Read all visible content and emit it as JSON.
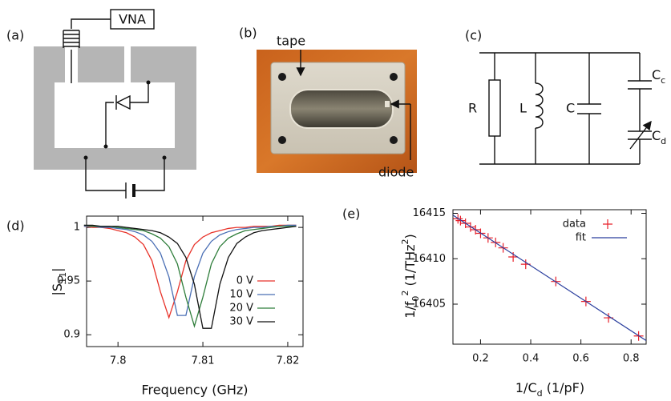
{
  "panels": {
    "a": {
      "label": "(a)",
      "vna": "VNA"
    },
    "b": {
      "label": "(b)",
      "tape": "tape",
      "diode": "diode"
    },
    "c": {
      "label": "(c)",
      "R": "R",
      "L": "L",
      "C": "C",
      "Cc": {
        "text": "C",
        "sub": "c"
      },
      "Cd": {
        "text": "C",
        "sub": "d"
      }
    }
  },
  "chart_data": [
    {
      "type": "line",
      "panel_label": "(d)",
      "x_label": "Frequency (GHz)",
      "y_label": [
        {
          "text": "|S"
        },
        {
          "text": "11",
          "shift": "sub"
        },
        {
          "text": "|"
        }
      ],
      "x": [
        7.796,
        7.797,
        7.798,
        7.799,
        7.8,
        7.801,
        7.802,
        7.803,
        7.804,
        7.805,
        7.806,
        7.807,
        7.808,
        7.809,
        7.81,
        7.811,
        7.812,
        7.813,
        7.814,
        7.815,
        7.816,
        7.817,
        7.818,
        7.819,
        7.82,
        7.821
      ],
      "series": [
        {
          "name": "0 V",
          "color": "#e8332a",
          "values": [
            1.001,
            1.0,
            1.0,
            0.999,
            0.997,
            0.995,
            0.991,
            0.984,
            0.969,
            0.94,
            0.916,
            0.94,
            0.969,
            0.984,
            0.991,
            0.995,
            0.997,
            0.999,
            1.0,
            1.0,
            1.001,
            1.001,
            1.001,
            1.002,
            1.002,
            1.002
          ]
        },
        {
          "name": "10 V",
          "color": "#4a6fb5",
          "values": [
            1.001,
            1.001,
            1.0,
            1.0,
            0.999,
            0.998,
            0.996,
            0.993,
            0.987,
            0.976,
            0.954,
            0.918,
            0.918,
            0.954,
            0.976,
            0.987,
            0.993,
            0.996,
            0.998,
            0.999,
            1.0,
            1.0,
            1.001,
            1.001,
            1.002,
            1.002
          ]
        },
        {
          "name": "20 V",
          "color": "#2e7d3a",
          "values": [
            1.002,
            1.001,
            1.001,
            1.001,
            1.0,
            0.999,
            0.998,
            0.997,
            0.994,
            0.99,
            0.982,
            0.966,
            0.935,
            0.908,
            0.935,
            0.966,
            0.982,
            0.99,
            0.994,
            0.997,
            0.998,
            0.999,
            1.0,
            1.001,
            1.001,
            1.001
          ]
        },
        {
          "name": "30 V",
          "color": "#111111",
          "values": [
            1.002,
            1.002,
            1.001,
            1.001,
            1.001,
            1.0,
            0.999,
            0.998,
            0.997,
            0.995,
            0.991,
            0.985,
            0.972,
            0.947,
            0.906,
            0.906,
            0.947,
            0.972,
            0.985,
            0.991,
            0.995,
            0.997,
            0.998,
            0.999,
            1.0,
            1.001
          ]
        }
      ],
      "xlim": [
        7.7963,
        7.8218
      ],
      "ylim": [
        0.889,
        1.0105
      ],
      "xticks": [
        7.8,
        7.81,
        7.82
      ],
      "yticks": [
        0.9,
        0.95,
        1
      ],
      "legend": "lower right"
    },
    {
      "type": "scatter",
      "panel_label": "(e)",
      "x_label": [
        {
          "text": "1/C"
        },
        {
          "text": "d",
          "shift": "sub"
        },
        {
          "text": " (1/pF)"
        }
      ],
      "y_label": [
        {
          "text": "1/f"
        },
        {
          "text": "0",
          "shift": "sub"
        },
        {
          "text": "2",
          "shift": "super"
        },
        {
          "text": " (1/THz"
        },
        {
          "text": "2",
          "shift": "super"
        },
        {
          "text": ")"
        }
      ],
      "series": [
        {
          "name": "data",
          "color": "#e8202a",
          "marker": "+",
          "x": [
            0.11,
            0.12,
            0.14,
            0.16,
            0.18,
            0.2,
            0.23,
            0.26,
            0.29,
            0.33,
            0.38,
            0.5,
            0.62,
            0.71,
            0.83
          ],
          "values": [
            16414.4,
            16414.2,
            16413.9,
            16413.5,
            16413.2,
            16412.8,
            16412.3,
            16411.8,
            16411.2,
            16410.2,
            16409.4,
            16407.5,
            16405.3,
            16403.5,
            16401.5
          ]
        },
        {
          "name": "fit",
          "color": "#2b3f9e",
          "marker": "line",
          "x": [
            0.09,
            0.86
          ],
          "values": [
            16414.8,
            16401.0
          ]
        }
      ],
      "xlim": [
        0.09,
        0.86
      ],
      "ylim": [
        16400.6,
        16415.4
      ],
      "xticks": [
        0.2,
        0.4,
        0.6,
        0.8
      ],
      "yticks": [
        16405,
        16410,
        16415
      ],
      "legend": "upper right"
    }
  ]
}
